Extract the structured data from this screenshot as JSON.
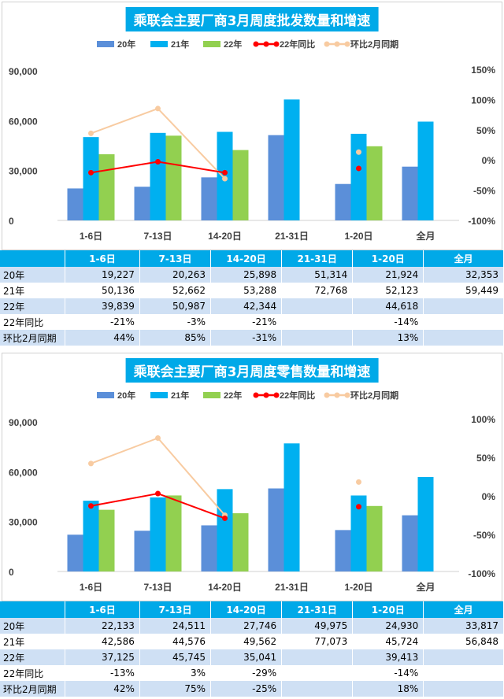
{
  "chart_data": [
    {
      "type": "bar",
      "title": "乘联会主要厂商3月周度批发数量和增速",
      "categories": [
        "1-6日",
        "7-13日",
        "14-20日",
        "21-31日",
        "1-20日",
        "全月"
      ],
      "series": [
        {
          "name": "20年",
          "values": [
            19227,
            20263,
            25898,
            51314,
            21924,
            32353
          ],
          "color": "#5b8fd9"
        },
        {
          "name": "21年",
          "values": [
            50136,
            52662,
            53288,
            72768,
            52123,
            59449
          ],
          "color": "#00b0f0"
        },
        {
          "name": "22年",
          "values": [
            39839,
            50987,
            42344,
            null,
            44618,
            null
          ],
          "color": "#92d050"
        }
      ],
      "line_series": [
        {
          "name": "22年同比",
          "values": [
            -0.21,
            -0.03,
            -0.21,
            null,
            -0.14,
            null
          ],
          "color": "#ff0000"
        },
        {
          "name": "环比2月同期",
          "values": [
            0.44,
            0.85,
            -0.31,
            null,
            0.13,
            null
          ],
          "color": "#f8cba1"
        }
      ],
      "ylim": [
        0,
        90000
      ],
      "yticks": [
        "0",
        "30,000",
        "60,000",
        "90,000"
      ],
      "y2lim": [
        -1,
        1.5
      ],
      "y2ticks": [
        "-100%",
        "-50%",
        "0%",
        "50%",
        "100%",
        "150%"
      ],
      "legend_position": "top"
    },
    {
      "type": "bar",
      "title": "乘联会主要厂商3月周度零售数量和增速",
      "categories": [
        "1-6日",
        "7-13日",
        "14-20日",
        "21-31日",
        "1-20日",
        "全月"
      ],
      "series": [
        {
          "name": "20年",
          "values": [
            22133,
            24511,
            27746,
            49975,
            24930,
            33817
          ],
          "color": "#5b8fd9"
        },
        {
          "name": "21年",
          "values": [
            42586,
            44576,
            49562,
            77073,
            45724,
            56848
          ],
          "color": "#00b0f0"
        },
        {
          "name": "22年",
          "values": [
            37125,
            45745,
            35041,
            null,
            39413,
            null
          ],
          "color": "#92d050"
        }
      ],
      "line_series": [
        {
          "name": "22年同比",
          "values": [
            -0.13,
            0.03,
            -0.29,
            null,
            -0.14,
            null
          ],
          "color": "#ff0000"
        },
        {
          "name": "环比2月同期",
          "values": [
            0.42,
            0.75,
            -0.25,
            null,
            0.18,
            null
          ],
          "color": "#f8cba1"
        }
      ],
      "ylim": [
        0,
        90000
      ],
      "yticks": [
        "0",
        "30,000",
        "60,000",
        "90,000"
      ],
      "y2lim": [
        -1,
        1
      ],
      "y2ticks": [
        "-100%",
        "-50%",
        "0%",
        "50%",
        "100%"
      ],
      "legend_position": "top"
    }
  ],
  "tables": [
    {
      "headers": [
        "",
        "1-6日",
        "7-13日",
        "14-20日",
        "21-31日",
        "1-20日",
        "全月"
      ],
      "rows": [
        [
          "20年",
          "19,227",
          "20,263",
          "25,898",
          "51,314",
          "21,924",
          "32,353"
        ],
        [
          "21年",
          "50,136",
          "52,662",
          "53,288",
          "72,768",
          "52,123",
          "59,449"
        ],
        [
          "22年",
          "39,839",
          "50,987",
          "42,344",
          "",
          "44,618",
          ""
        ],
        [
          "22年同比",
          "-21%",
          "-3%",
          "-21%",
          "",
          "-14%",
          ""
        ],
        [
          "环比2月同期",
          "44%",
          "85%",
          "-31%",
          "",
          "13%",
          ""
        ]
      ]
    },
    {
      "headers": [
        "",
        "1-6日",
        "7-13日",
        "14-20日",
        "21-31日",
        "1-20日",
        "全月"
      ],
      "rows": [
        [
          "20年",
          "22,133",
          "24,511",
          "27,746",
          "49,975",
          "24,930",
          "33,817"
        ],
        [
          "21年",
          "42,586",
          "44,576",
          "49,562",
          "77,073",
          "45,724",
          "56,848"
        ],
        [
          "22年",
          "37,125",
          "45,745",
          "35,041",
          "",
          "39,413",
          ""
        ],
        [
          "22年同比",
          "-13%",
          "3%",
          "-29%",
          "",
          "-14%",
          ""
        ],
        [
          "环比2月同期",
          "42%",
          "75%",
          "-25%",
          "",
          "18%",
          ""
        ]
      ]
    }
  ]
}
